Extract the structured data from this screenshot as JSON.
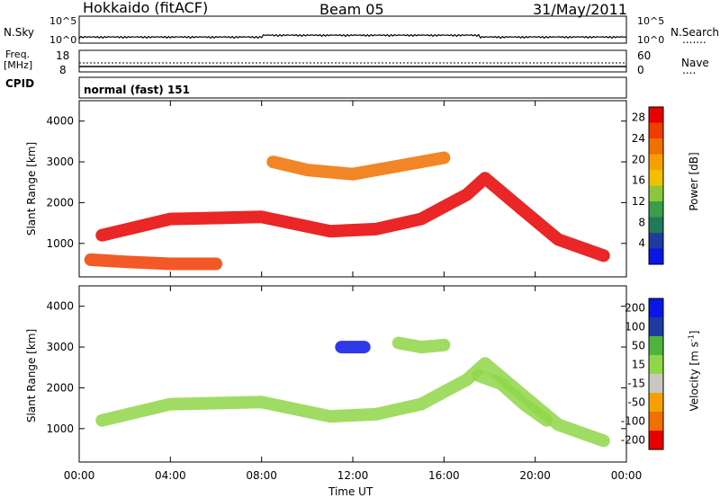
{
  "header": {
    "station": "Hokkaido (fitACF)",
    "beam": "Beam 05",
    "date": "31/May/2011"
  },
  "summary_panels": {
    "nsky": {
      "left_label": "N.Sky",
      "left_ticks": [
        "10^5",
        "10^0"
      ],
      "right_ticks": [
        "10^5",
        "10^0"
      ],
      "right_label": "N.Search",
      "right_legend": "......."
    },
    "freq": {
      "left_label_line1": "Freq.",
      "left_label_line2": "[MHz]",
      "left_ticks": [
        "18",
        "8"
      ],
      "right_ticks": [
        "60",
        "0"
      ],
      "right_label": "Nave",
      "right_legend": "...."
    },
    "cpid": {
      "label": "CPID",
      "value": "normal (fast) 151"
    }
  },
  "x_axis": {
    "label": "Time UT",
    "ticks": [
      "00:00",
      "04:00",
      "08:00",
      "12:00",
      "16:00",
      "20:00",
      "00:00"
    ]
  },
  "colors": {
    "power": [
      "#0a16e6",
      "#1e3ca0",
      "#1f7a5a",
      "#3a9e49",
      "#8cc63c",
      "#f0c000",
      "#f5a000",
      "#f07000",
      "#f03c00",
      "#e60000"
    ],
    "velocity": [
      "#e60000",
      "#f07000",
      "#f5a000",
      "#c8c8c0",
      "#8fd648",
      "#4fb43a",
      "#1e3ca0",
      "#0a16e6"
    ]
  },
  "chart_data": [
    {
      "type": "heatmap",
      "title": "Power",
      "ylabel": "Slant Range [km]",
      "xlabel": "",
      "ylim": [
        180,
        4500
      ],
      "xlim_hours": [
        0,
        24
      ],
      "yticks": [
        1000,
        2000,
        3000,
        4000
      ],
      "colorbar": {
        "label": "Power [dB]",
        "range": [
          0,
          30
        ],
        "ticks": [
          4,
          8,
          12,
          16,
          20,
          24,
          28
        ]
      },
      "echo_bands": [
        {
          "name": "",
          "t": [
            1.0,
            4.0,
            8.0,
            11.0,
            13.0,
            15.0,
            17.0,
            17.8,
            19.5,
            21.0,
            23.0
          ],
          "range_km": [
            1200,
            1600,
            1650,
            1300,
            1350,
            1600,
            2200,
            2600,
            1800,
            1100,
            700
          ],
          "value_db": 28
        },
        {
          "name": "",
          "t": [
            0.5,
            2.0,
            4.0,
            6.0
          ],
          "range_km": [
            600,
            550,
            500,
            500
          ],
          "value_db": 26
        },
        {
          "name": "",
          "t": [
            8.5,
            10.0,
            12.0,
            14.0,
            16.0
          ],
          "range_km": [
            3000,
            2800,
            2700,
            2900,
            3100
          ],
          "value_db": 22
        }
      ]
    },
    {
      "type": "heatmap",
      "title": "Velocity",
      "ylabel": "Slant Range [km]",
      "xlabel": "Time UT",
      "ylim": [
        180,
        4500
      ],
      "xlim_hours": [
        0,
        24
      ],
      "yticks": [
        1000,
        2000,
        3000,
        4000
      ],
      "colorbar": {
        "label": "Velocity [m s^-1]",
        "range": [
          -250,
          250
        ],
        "ticks": [
          200,
          100,
          50,
          15,
          -15,
          -50,
          -100,
          -200
        ]
      },
      "echo_bands": [
        {
          "name": "",
          "t": [
            1.0,
            4.0,
            8.0,
            11.0,
            13.0,
            15.0,
            17.0,
            17.8,
            19.5,
            21.0,
            23.0
          ],
          "range_km": [
            1200,
            1600,
            1650,
            1300,
            1350,
            1600,
            2200,
            2600,
            1800,
            1100,
            700
          ],
          "value_ms": 0
        },
        {
          "name": "",
          "t": [
            17.5,
            18.5,
            19.5,
            20.5
          ],
          "range_km": [
            2300,
            2100,
            1600,
            1200
          ],
          "value_ms": 40
        },
        {
          "name": "",
          "t": [
            14.0,
            15.0,
            16.0
          ],
          "range_km": [
            3100,
            3000,
            3050
          ],
          "value_ms": 50
        },
        {
          "name": "",
          "t": [
            11.5,
            12.5
          ],
          "range_km": [
            3000,
            3000
          ],
          "value_ms": 200
        }
      ]
    }
  ]
}
